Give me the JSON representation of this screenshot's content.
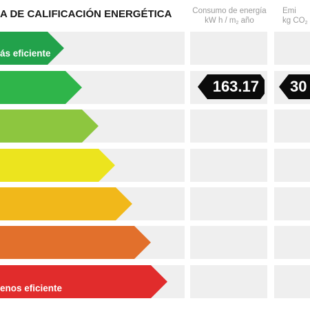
{
  "header": {
    "title": "A DE CALIFICACIÓN ENERGÉTICA",
    "consumption": {
      "line1": "Consumo de energía",
      "line2_pre": "kW h / m",
      "line2_sub": "2",
      "line2_post": " año"
    },
    "emissions": {
      "line1": "Emi",
      "line2_pre": "kg CO",
      "line2_sub": "2"
    }
  },
  "scale": {
    "top_label": "ás eficiente",
    "bottom_label": "enos eficiente",
    "bars": [
      {
        "color": "#22a24b"
      },
      {
        "color": "#2fb54a"
      },
      {
        "color": "#8dc63f"
      },
      {
        "color": "#ece41e"
      },
      {
        "color": "#f1b81a"
      },
      {
        "color": "#e2702c"
      },
      {
        "color": "#e12c2c"
      }
    ]
  },
  "rating": {
    "consumption_value": "163.17",
    "emissions_value": "30"
  }
}
